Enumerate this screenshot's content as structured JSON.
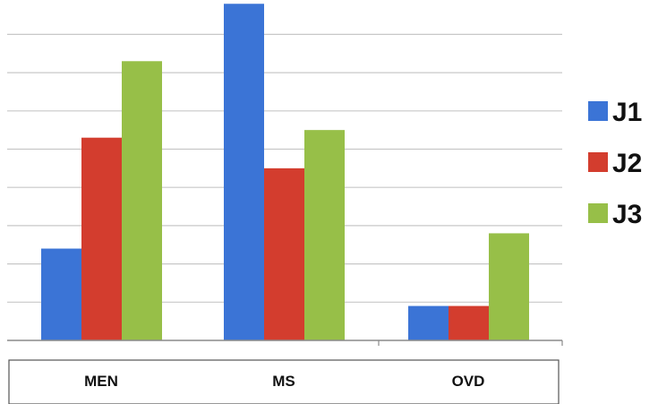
{
  "colors": {
    "J1": "#3b74d6",
    "J2": "#d33d2e",
    "J3": "#97bf48",
    "grid": "#c8c8c8",
    "axis": "#8a8a8a"
  },
  "chart_data": {
    "type": "bar",
    "categories": [
      "MEN",
      "MS",
      "OVD"
    ],
    "series": [
      {
        "name": "J1",
        "values": [
          2.4,
          8.8,
          0.9
        ]
      },
      {
        "name": "J2",
        "values": [
          5.3,
          4.5,
          0.9
        ]
      },
      {
        "name": "J3",
        "values": [
          7.3,
          5.5,
          2.8
        ]
      }
    ],
    "ylim": [
      0,
      9
    ],
    "grid": true,
    "legend": "right",
    "title": "",
    "xlabel": "",
    "ylabel": ""
  }
}
